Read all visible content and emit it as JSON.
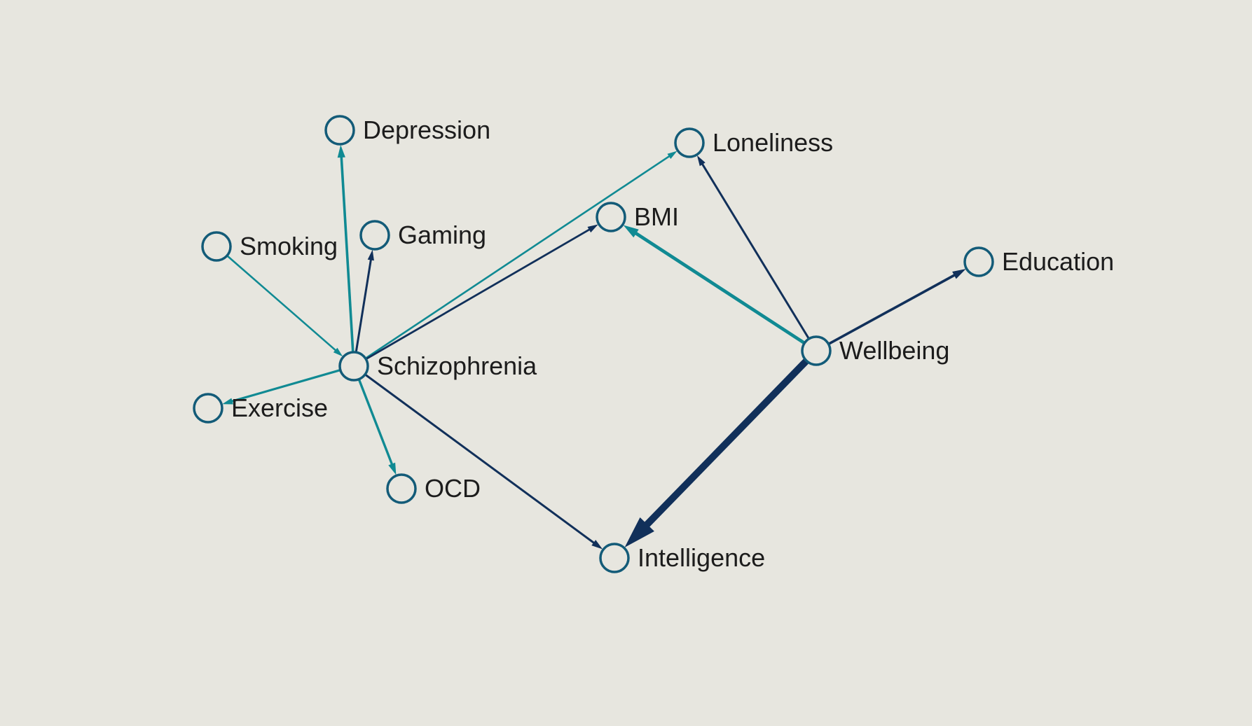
{
  "graph": {
    "nodes": [
      {
        "id": "depression",
        "label": "Depression"
      },
      {
        "id": "loneliness",
        "label": "Loneliness"
      },
      {
        "id": "smoking",
        "label": "Smoking"
      },
      {
        "id": "gaming",
        "label": "Gaming"
      },
      {
        "id": "bmi",
        "label": "BMI"
      },
      {
        "id": "education",
        "label": "Education"
      },
      {
        "id": "schizophrenia",
        "label": "Schizophrenia"
      },
      {
        "id": "wellbeing",
        "label": "Wellbeing"
      },
      {
        "id": "exercise",
        "label": "Exercise"
      },
      {
        "id": "ocd",
        "label": "OCD"
      },
      {
        "id": "intelligence",
        "label": "Intelligence"
      }
    ],
    "edges": [
      {
        "from": "smoking",
        "to": "schizophrenia",
        "color": "teal"
      },
      {
        "from": "schizophrenia",
        "to": "depression",
        "color": "teal"
      },
      {
        "from": "schizophrenia",
        "to": "gaming",
        "color": "navy"
      },
      {
        "from": "schizophrenia",
        "to": "loneliness",
        "color": "teal"
      },
      {
        "from": "schizophrenia",
        "to": "bmi",
        "color": "navy"
      },
      {
        "from": "schizophrenia",
        "to": "exercise",
        "color": "teal"
      },
      {
        "from": "schizophrenia",
        "to": "ocd",
        "color": "teal"
      },
      {
        "from": "schizophrenia",
        "to": "intelligence",
        "color": "navy"
      },
      {
        "from": "wellbeing",
        "to": "loneliness",
        "color": "navy"
      },
      {
        "from": "wellbeing",
        "to": "bmi",
        "color": "teal"
      },
      {
        "from": "wellbeing",
        "to": "education",
        "color": "navy"
      },
      {
        "from": "wellbeing",
        "to": "intelligence",
        "color": "navy"
      }
    ],
    "colors": {
      "background": "#e7e6df",
      "node_stroke": "#135b78",
      "teal": "#108a93",
      "navy": "#11305a",
      "label": "#1c1c1c"
    }
  }
}
